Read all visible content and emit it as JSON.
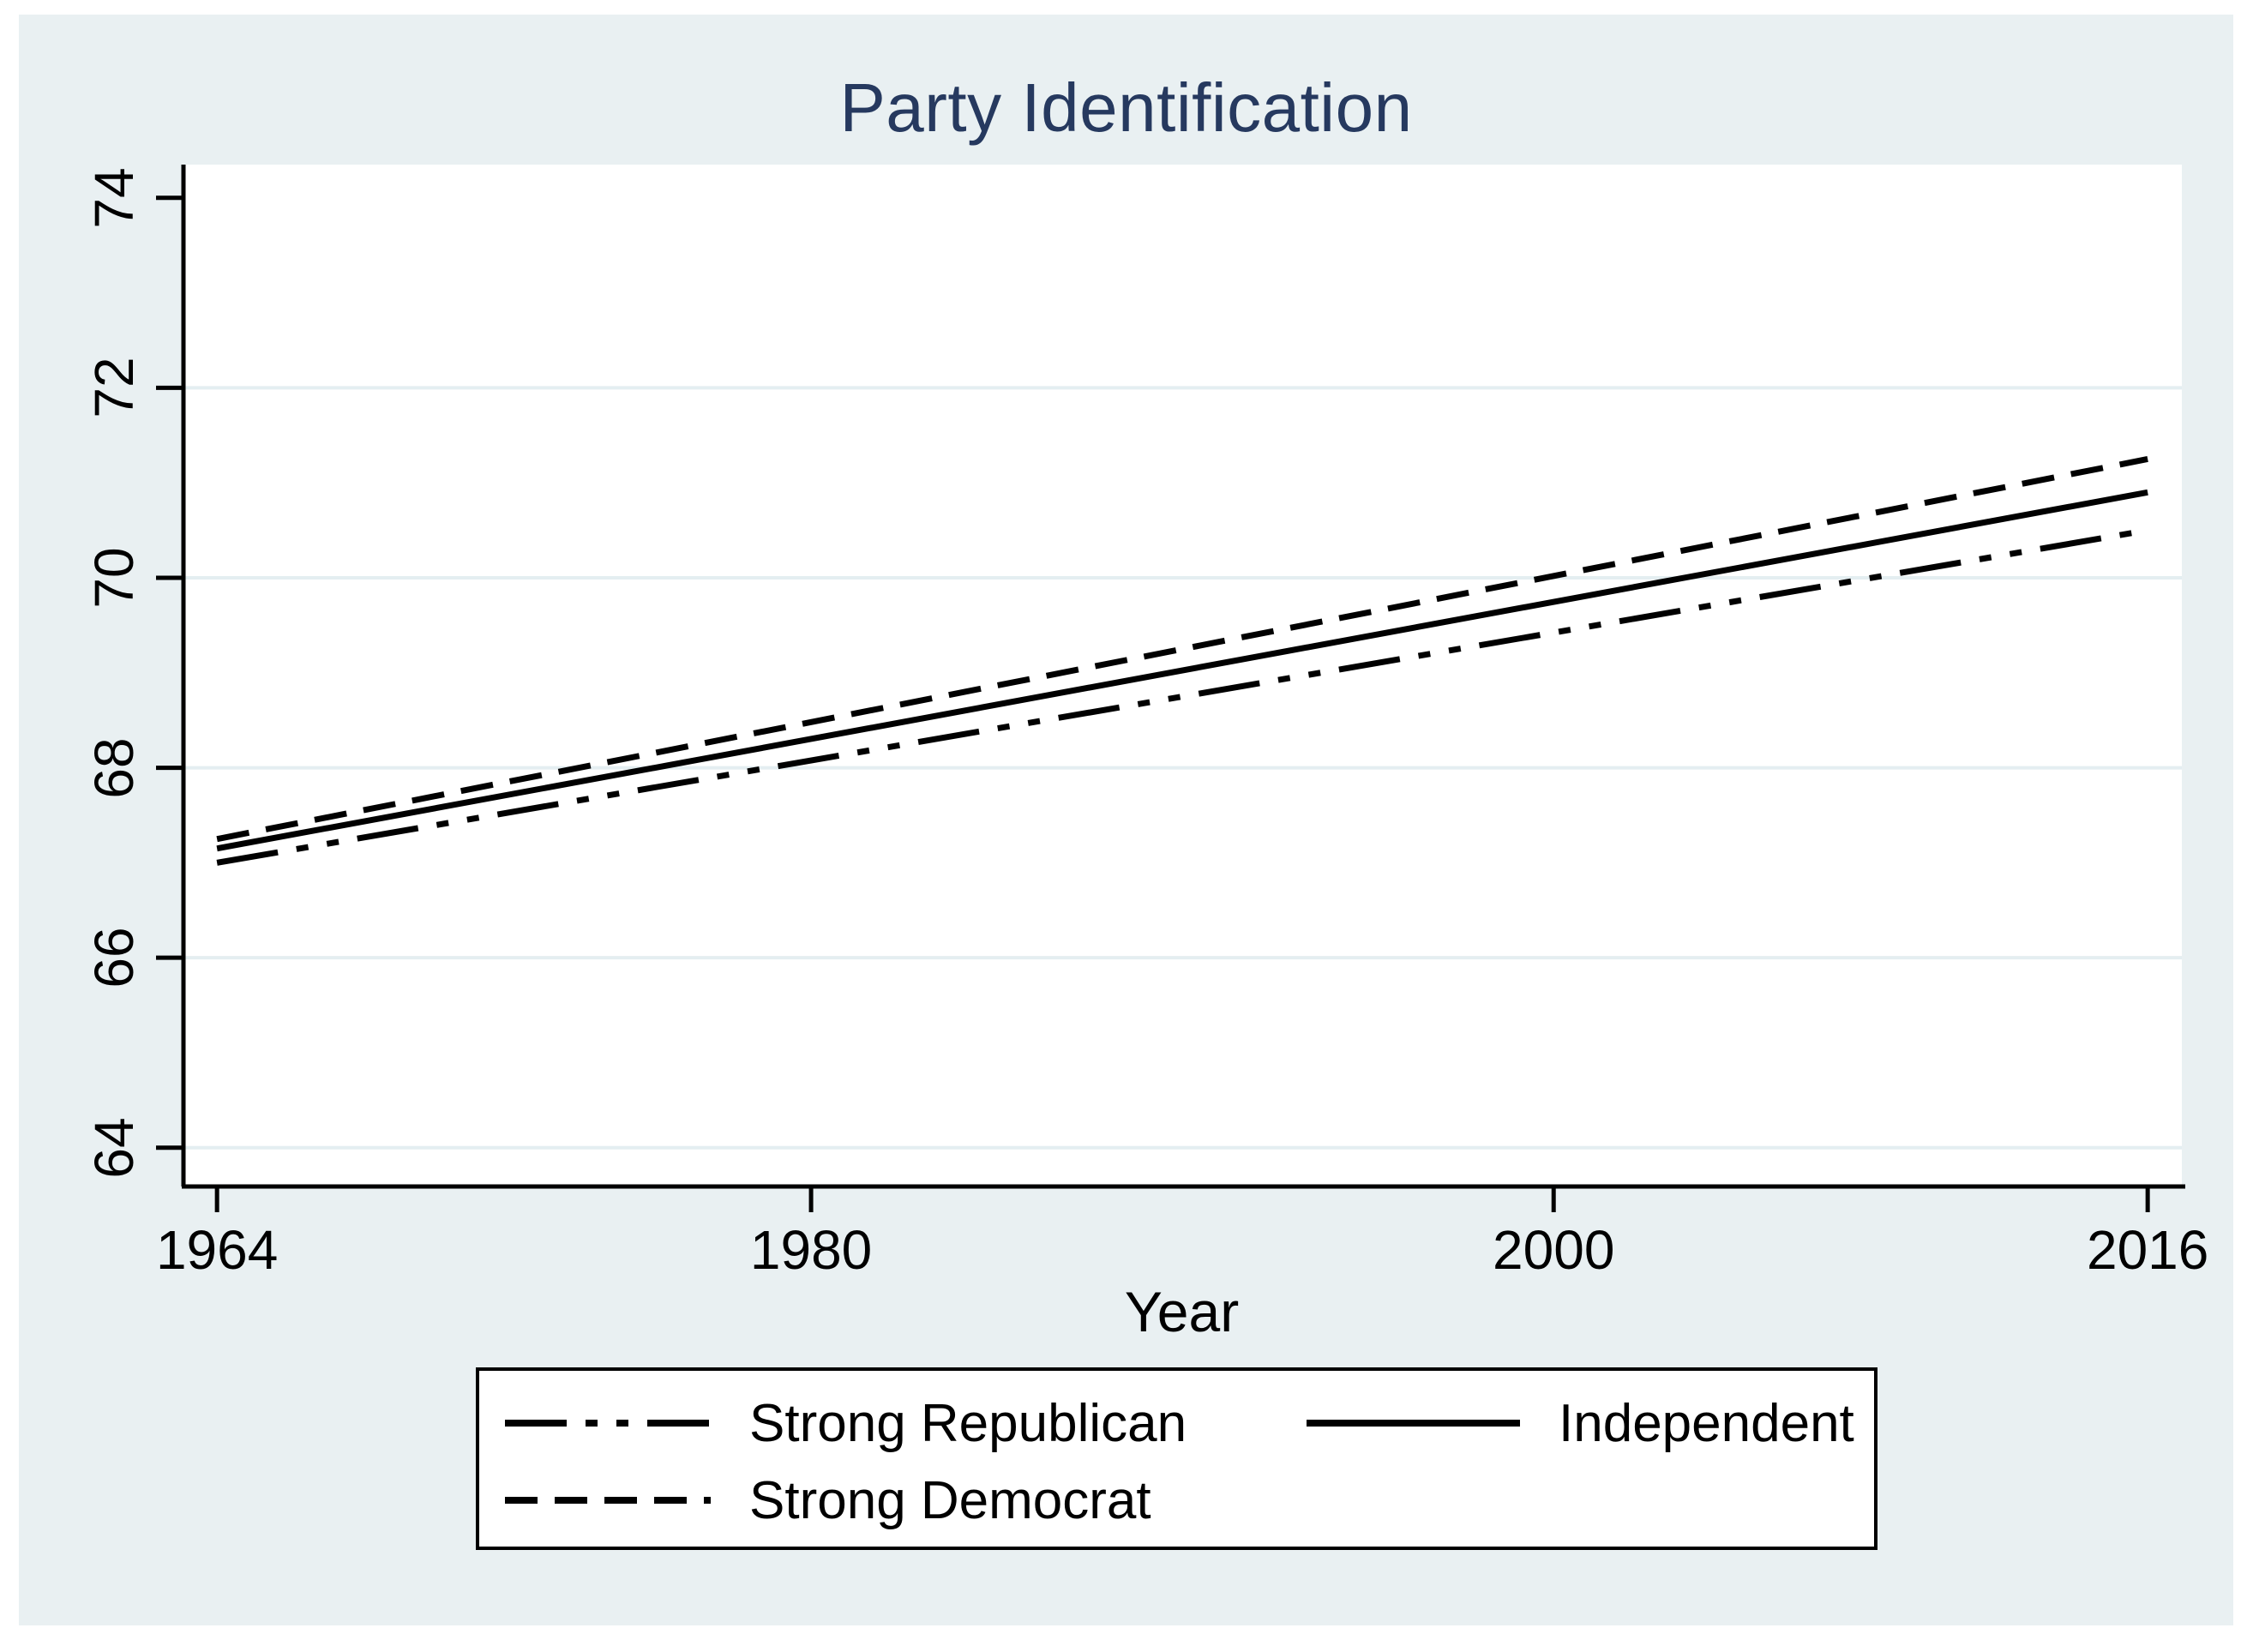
{
  "figure": {
    "title": "Party Identification"
  },
  "chart_data": {
    "type": "line",
    "title": "Party Identification",
    "xlabel": "Year",
    "ylabel": "",
    "x_ticks": [
      1964,
      1980,
      2000,
      2016
    ],
    "y_ticks": [
      64,
      66,
      68,
      70,
      72,
      74
    ],
    "gridline_ticks": [
      64,
      66,
      68,
      70,
      72
    ],
    "xlim": [
      1963.05,
      2016.92
    ],
    "ylim": [
      63.61,
      74.35
    ],
    "grid": "horizontal-only",
    "legend_position": "bottom-center",
    "series": [
      {
        "name": "Strong Republican",
        "style": "dash-dot-dot",
        "color": "#000000",
        "x": [
          1964,
          2016
        ],
        "values": [
          67.0,
          70.5
        ]
      },
      {
        "name": "Independent",
        "style": "solid",
        "color": "#000000",
        "x": [
          1964,
          2016
        ],
        "values": [
          67.15,
          70.9
        ]
      },
      {
        "name": "Strong Democrat",
        "style": "dashed",
        "color": "#000000",
        "x": [
          1964,
          2016
        ],
        "values": [
          67.25,
          71.25
        ]
      }
    ],
    "legend_layout": [
      [
        "Strong Republican",
        "Independent"
      ],
      [
        "Strong Democrat"
      ]
    ]
  },
  "colors": {
    "page_bg": "#ffffff",
    "figure_bg": "#e9f0f2",
    "plot_bg": "#ffffff",
    "gridline": "#e4eef1",
    "axis": "#000000",
    "text": "#000000",
    "title": "#26395f",
    "legend_bg": "#ffffff",
    "legend_border": "#000000"
  }
}
